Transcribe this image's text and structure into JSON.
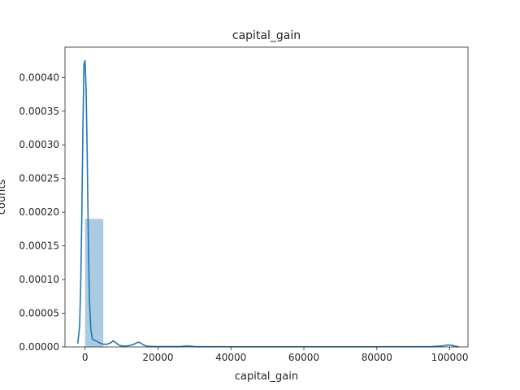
{
  "chart_data": {
    "type": "histogram_with_kde",
    "title": "capital_gain",
    "xlabel": "capital_gain",
    "ylabel": "counts",
    "xlim": [
      -5500,
      105000
    ],
    "ylim": [
      0,
      0.000445
    ],
    "x_ticks": [
      0,
      20000,
      40000,
      60000,
      80000,
      100000
    ],
    "x_tick_labels": [
      "0",
      "20000",
      "40000",
      "60000",
      "80000",
      "100000"
    ],
    "y_ticks": [
      0,
      5e-05,
      0.0001,
      0.00015,
      0.0002,
      0.00025,
      0.0003,
      0.00035,
      0.0004
    ],
    "y_tick_labels": [
      "0.00000",
      "0.00005",
      "0.00010",
      "0.00015",
      "0.00020",
      "0.00025",
      "0.00030",
      "0.00035",
      "0.00040"
    ],
    "grid": false,
    "bars": [
      {
        "x0": 0,
        "x1": 5000,
        "value": 0.00019
      }
    ],
    "kde": {
      "x": [
        -2000,
        -1500,
        -1200,
        -900,
        -600,
        -300,
        0,
        300,
        600,
        900,
        1200,
        1600,
        2000,
        2500,
        3000,
        4000,
        5000,
        6000,
        7000,
        7700,
        8500,
        9500,
        11000,
        13000,
        14500,
        15200,
        16000,
        17000,
        19000,
        22000,
        26000,
        28000,
        30000,
        40000,
        60000,
        80000,
        95000,
        98000,
        99500,
        100500,
        101500,
        102500
      ],
      "y": [
        5e-06,
        3e-05,
        9e-05,
        0.00019,
        0.00032,
        0.00042,
        0.000425,
        0.00038,
        0.00028,
        0.00016,
        7e-05,
        2.5e-05,
        1.2e-05,
        1e-05,
        9e-06,
        6e-06,
        4e-06,
        4e-06,
        6e-06,
        9e-06,
        6e-06,
        2e-06,
        1e-06,
        3e-06,
        7e-06,
        6e-06,
        3e-06,
        1e-06,
        5e-07,
        5e-07,
        5e-07,
        1.5e-06,
        5e-07,
        3e-07,
        3e-07,
        3e-07,
        5e-07,
        1.5e-06,
        3e-06,
        2.5e-06,
        1e-06,
        3e-07
      ]
    }
  },
  "colors": {
    "bar": "#a7c8e0",
    "kde": "#1f77b4",
    "axes": "#262626"
  }
}
